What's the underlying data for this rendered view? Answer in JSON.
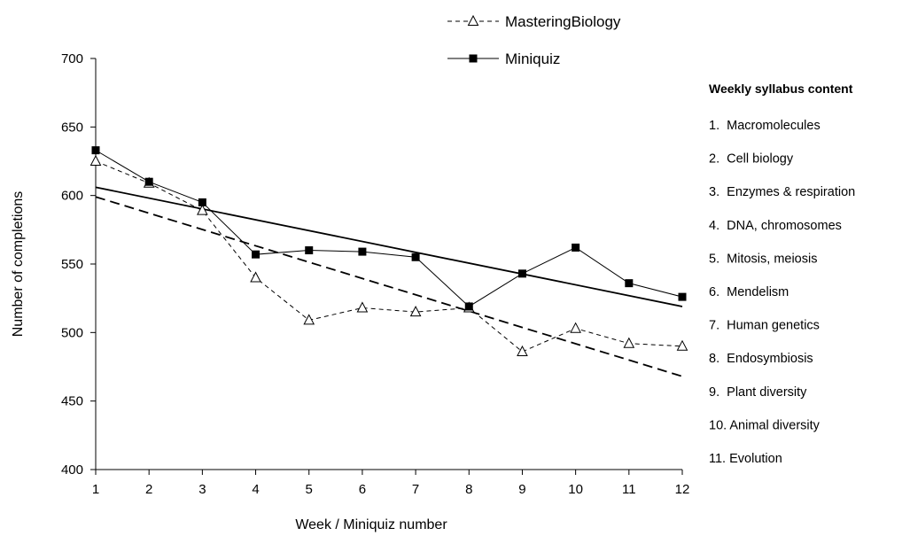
{
  "chart_data": {
    "type": "line",
    "title": "",
    "xlabel": "Week / Miniquiz number",
    "ylabel": "Number of completions",
    "x": [
      1,
      2,
      3,
      4,
      5,
      6,
      7,
      8,
      9,
      10,
      11,
      12
    ],
    "ylim": [
      400,
      700
    ],
    "yticks": [
      400,
      450,
      500,
      550,
      600,
      650,
      700
    ],
    "grid": false,
    "legend_position": "top-center",
    "series": [
      {
        "name": "MasteringBiology",
        "marker": "open-triangle",
        "line_style": "dashed",
        "values": [
          625,
          609,
          589,
          540,
          509,
          518,
          515,
          518,
          486,
          503,
          492,
          490
        ],
        "trendline": {
          "style": "dashed",
          "start": [
            1,
            599
          ],
          "end": [
            12,
            468
          ]
        }
      },
      {
        "name": "Miniquiz",
        "marker": "filled-square",
        "line_style": "solid",
        "values": [
          633,
          610,
          595,
          557,
          560,
          559,
          555,
          519,
          543,
          562,
          536,
          526
        ],
        "trendline": {
          "style": "solid",
          "start": [
            1,
            606
          ],
          "end": [
            12,
            519
          ]
        }
      }
    ],
    "colors": {
      "line": "#000000",
      "background": "#ffffff"
    }
  },
  "syllabus": {
    "title": "Weekly syllabus content",
    "items": [
      "1.  Macromolecules",
      "2.  Cell biology",
      "3.  Enzymes & respiration",
      "4.  DNA, chromosomes",
      "5.  Mitosis, meiosis",
      "6.  Mendelism",
      "7.  Human genetics",
      "8.  Endosymbiosis",
      "9.  Plant diversity",
      "10. Animal diversity",
      "11. Evolution"
    ]
  }
}
